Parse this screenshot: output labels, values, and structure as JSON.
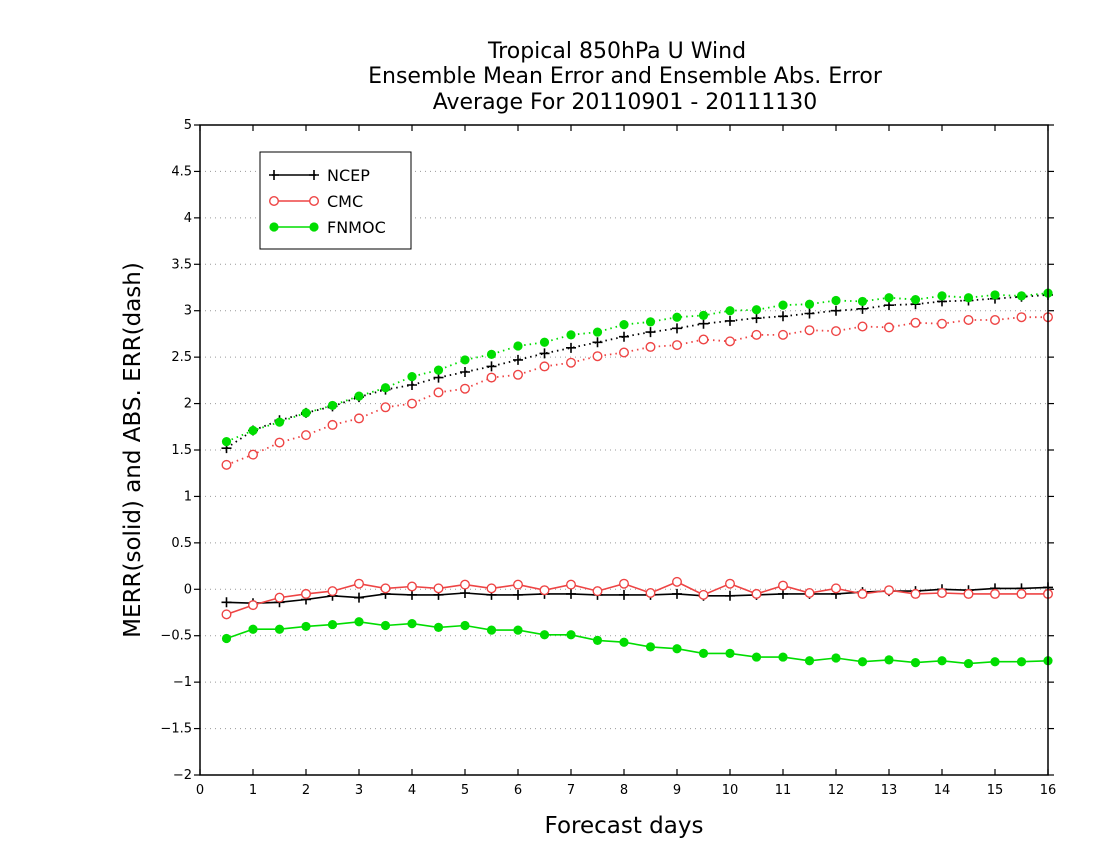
{
  "chart_data": {
    "type": "line",
    "title": [
      "Tropical 850hPa U Wind",
      "Ensemble Mean Error and Ensemble Abs. Error",
      "Average For 20110901 - 20111130"
    ],
    "xlabel": "Forecast days",
    "ylabel": "MERR(solid) and ABS. ERR(dash)",
    "xlim": [
      0,
      16
    ],
    "ylim": [
      -2,
      5
    ],
    "x_ticks": [
      0,
      1,
      2,
      3,
      4,
      5,
      6,
      7,
      8,
      9,
      10,
      11,
      12,
      13,
      14,
      15,
      16
    ],
    "x_tick_labels": [
      "0",
      "1",
      "2",
      "3",
      "4",
      "5",
      "6",
      "7",
      "8",
      "9",
      "10",
      "11",
      "12",
      "13",
      "14",
      "15",
      "16"
    ],
    "y_ticks": [
      -2,
      -1.5,
      -1,
      -0.5,
      0,
      0.5,
      1,
      1.5,
      2,
      2.5,
      3,
      3.5,
      4,
      4.5,
      5
    ],
    "y_tick_labels": [
      "−2",
      "−1.5",
      "−1",
      "−0.5",
      "0",
      "0.5",
      "1",
      "1.5",
      "2",
      "2.5",
      "3",
      "3.5",
      "4",
      "4.5",
      "5"
    ],
    "grid": "horizontal dotted",
    "legend_position": "top-left",
    "x": [
      0.5,
      1,
      1.5,
      2,
      2.5,
      3,
      3.5,
      4,
      4.5,
      5,
      5.5,
      6,
      6.5,
      7,
      7.5,
      8,
      8.5,
      9,
      9.5,
      10,
      10.5,
      11,
      11.5,
      12,
      12.5,
      13,
      13.5,
      14,
      14.5,
      15,
      15.5,
      16
    ],
    "series": [
      {
        "name": "NCEP",
        "color": "#000000",
        "marker": "plus",
        "merr": [
          -0.14,
          -0.15,
          -0.14,
          -0.11,
          -0.07,
          -0.09,
          -0.05,
          -0.06,
          -0.06,
          -0.04,
          -0.06,
          -0.06,
          -0.05,
          -0.05,
          -0.06,
          -0.06,
          -0.06,
          -0.05,
          -0.07,
          -0.07,
          -0.06,
          -0.05,
          -0.05,
          -0.05,
          -0.03,
          -0.02,
          -0.02,
          0.0,
          -0.01,
          0.01,
          0.01,
          0.02
        ],
        "abs_err": [
          1.52,
          1.71,
          1.82,
          1.9,
          1.97,
          2.07,
          2.15,
          2.2,
          2.28,
          2.34,
          2.4,
          2.47,
          2.54,
          2.6,
          2.66,
          2.72,
          2.77,
          2.81,
          2.86,
          2.89,
          2.92,
          2.94,
          2.97,
          3.0,
          3.02,
          3.06,
          3.07,
          3.1,
          3.11,
          3.13,
          3.15,
          3.17
        ]
      },
      {
        "name": "CMC",
        "color": "#ee4444",
        "marker": "open-circle",
        "merr": [
          -0.27,
          -0.17,
          -0.09,
          -0.05,
          -0.02,
          0.06,
          0.01,
          0.03,
          0.01,
          0.05,
          0.01,
          0.05,
          -0.01,
          0.05,
          -0.02,
          0.06,
          -0.04,
          0.08,
          -0.06,
          0.06,
          -0.05,
          0.04,
          -0.04,
          0.01,
          -0.05,
          -0.01,
          -0.05,
          -0.04,
          -0.05,
          -0.05,
          -0.05,
          -0.05
        ],
        "abs_err": [
          1.34,
          1.45,
          1.58,
          1.66,
          1.77,
          1.84,
          1.96,
          2.0,
          2.12,
          2.16,
          2.28,
          2.31,
          2.4,
          2.44,
          2.51,
          2.55,
          2.61,
          2.63,
          2.69,
          2.67,
          2.74,
          2.74,
          2.79,
          2.78,
          2.83,
          2.82,
          2.87,
          2.86,
          2.9,
          2.9,
          2.93,
          2.93
        ]
      },
      {
        "name": "FNMOC",
        "color": "#00dd00",
        "marker": "filled-circle",
        "merr": [
          -0.53,
          -0.43,
          -0.43,
          -0.4,
          -0.38,
          -0.35,
          -0.39,
          -0.37,
          -0.41,
          -0.39,
          -0.44,
          -0.44,
          -0.49,
          -0.49,
          -0.55,
          -0.57,
          -0.62,
          -0.64,
          -0.69,
          -0.69,
          -0.73,
          -0.73,
          -0.77,
          -0.74,
          -0.78,
          -0.76,
          -0.79,
          -0.77,
          -0.8,
          -0.78,
          -0.78,
          -0.77
        ],
        "abs_err": [
          1.59,
          1.71,
          1.8,
          1.9,
          1.98,
          2.08,
          2.17,
          2.29,
          2.36,
          2.47,
          2.53,
          2.62,
          2.66,
          2.74,
          2.77,
          2.85,
          2.88,
          2.93,
          2.95,
          3.0,
          3.01,
          3.06,
          3.07,
          3.11,
          3.1,
          3.14,
          3.12,
          3.16,
          3.14,
          3.17,
          3.16,
          3.19
        ]
      }
    ]
  }
}
